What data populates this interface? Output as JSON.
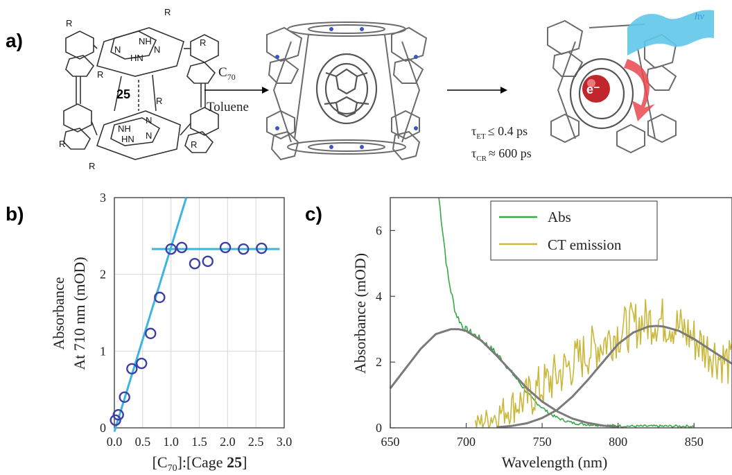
{
  "panels": {
    "a": "a)",
    "b": "b)",
    "c": "c)"
  },
  "scheme": {
    "cage_label": "25",
    "r_group": "R",
    "nh_labels": [
      "NH",
      "N",
      "N",
      "HN",
      "NH",
      "HN",
      "N",
      "N"
    ],
    "reagent": "C70",
    "reagent_base": "C",
    "reagent_sub": "70",
    "solvent": "Toluene",
    "photon_label": "hν",
    "electron_label": "e⁻",
    "tau_et": "τ",
    "tau_et_sub": "ET",
    "tau_et_val": "≤ 0.4 ps",
    "tau_cr": "τ",
    "tau_cr_sub": "CR",
    "tau_cr_val": "≈ 600 ps"
  },
  "chart_data": [
    {
      "type": "scatter",
      "panel": "b",
      "xlabel_parts": [
        "[C",
        "70",
        "]:[Cage ",
        "25",
        "]"
      ],
      "ylabel": [
        "Absorbance",
        "At 710 nm (mOD)"
      ],
      "xlim": [
        0.0,
        3.0
      ],
      "ylim": [
        0,
        3
      ],
      "xticks": [
        "0.0",
        "0.5",
        "1.0",
        "1.5",
        "2.0",
        "2.5",
        "3.0"
      ],
      "yticks": [
        "0",
        "1",
        "2",
        "3"
      ],
      "grid": true,
      "points": [
        {
          "x": 0.02,
          "y": 0.1
        },
        {
          "x": 0.07,
          "y": 0.17
        },
        {
          "x": 0.18,
          "y": 0.4
        },
        {
          "x": 0.31,
          "y": 0.77
        },
        {
          "x": 0.48,
          "y": 0.84
        },
        {
          "x": 0.64,
          "y": 1.23
        },
        {
          "x": 0.8,
          "y": 1.7
        },
        {
          "x": 1.0,
          "y": 2.33
        },
        {
          "x": 1.19,
          "y": 2.35
        },
        {
          "x": 1.42,
          "y": 2.14
        },
        {
          "x": 1.65,
          "y": 2.17
        },
        {
          "x": 1.96,
          "y": 2.35
        },
        {
          "x": 2.28,
          "y": 2.33
        },
        {
          "x": 2.6,
          "y": 2.34
        }
      ],
      "fit_lines": [
        {
          "x": [
            0.0,
            1.27
          ],
          "y": [
            -0.05,
            3.0
          ]
        },
        {
          "x": [
            0.66,
            2.92
          ],
          "y": [
            2.33,
            2.33
          ]
        }
      ],
      "colors": {
        "points": "#3b3fa6",
        "fit": "#3db5e0"
      }
    },
    {
      "type": "line",
      "panel": "c",
      "xlabel": "Wavelength (nm)",
      "ylabel": "Absorbance (mOD)",
      "xlim": [
        650,
        875
      ],
      "ylim": [
        0,
        7
      ],
      "xticks": [
        "650",
        "700",
        "750",
        "800",
        "850"
      ],
      "yticks": [
        "0",
        "2",
        "4",
        "6"
      ],
      "legend_position": "top",
      "series": [
        {
          "name": "Abs",
          "color": "#35a844",
          "x": [
            682,
            688,
            693,
            698,
            703,
            708,
            713,
            718,
            723,
            728,
            733,
            738,
            743,
            748,
            753,
            758,
            763,
            770,
            780,
            790,
            800,
            810,
            820,
            830,
            840,
            850
          ],
          "y": [
            7.0,
            4.6,
            3.5,
            3.05,
            2.9,
            2.75,
            2.55,
            2.35,
            2.1,
            1.8,
            1.5,
            1.2,
            0.9,
            0.7,
            0.5,
            0.35,
            0.25,
            0.15,
            0.1,
            0.08,
            0.06,
            0.05,
            0.05,
            0.05,
            0.05,
            0.05
          ]
        },
        {
          "name": "CT emission",
          "color": "#c9b73a",
          "x": [
            706,
            720,
            740,
            760,
            780,
            800,
            815,
            825,
            835,
            845,
            855,
            865,
            875
          ],
          "y": [
            0.1,
            0.4,
            0.9,
            1.6,
            2.3,
            2.9,
            3.2,
            3.3,
            3.2,
            2.9,
            2.5,
            2.2,
            1.9
          ]
        },
        {
          "name": "",
          "color": "#7a7a7a",
          "x": [
            650,
            660,
            670,
            680,
            690,
            695,
            700,
            710,
            720,
            730,
            740,
            750,
            760,
            770,
            780,
            790,
            800
          ],
          "y": [
            1.2,
            1.8,
            2.4,
            2.85,
            3.0,
            3.0,
            2.95,
            2.65,
            2.2,
            1.7,
            1.2,
            0.8,
            0.5,
            0.28,
            0.15,
            0.07,
            0.03
          ]
        },
        {
          "name": "",
          "color": "#7a7a7a",
          "x": [
            720,
            730,
            740,
            750,
            760,
            770,
            780,
            790,
            800,
            810,
            820,
            825,
            830,
            840,
            850,
            860,
            870,
            875
          ],
          "y": [
            0.02,
            0.06,
            0.14,
            0.3,
            0.55,
            0.95,
            1.45,
            2.0,
            2.55,
            2.9,
            3.08,
            3.1,
            3.08,
            2.95,
            2.7,
            2.4,
            2.1,
            1.95
          ]
        }
      ]
    }
  ]
}
